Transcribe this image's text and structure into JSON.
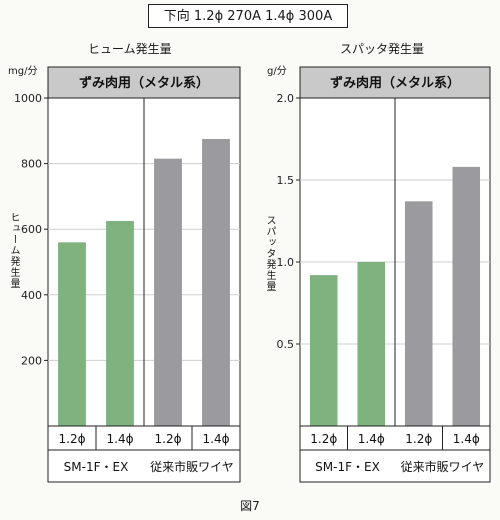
{
  "condition": "下向 1.2ϕ 270A   1.4ϕ 300A",
  "figure_caption": "図7",
  "colors": {
    "green": "#7fb27f",
    "gray": "#9b9b9f",
    "header_bg": "#c9c9c9"
  },
  "chart_data": [
    {
      "type": "bar",
      "title": "ヒューム発生量",
      "unit": "mg/分",
      "ylabel": "ヒューム発生量",
      "header": "ずみ肉用（メタル系）",
      "ylim": [
        0,
        1000
      ],
      "yticks": [
        "200",
        "400",
        "600",
        "800",
        "1000"
      ],
      "categories": [
        "1.2ϕ",
        "1.4ϕ",
        "1.2ϕ",
        "1.4ϕ"
      ],
      "groups": [
        "SM-1F・EX",
        "従来市販ワイヤ"
      ],
      "values": [
        560,
        625,
        815,
        875
      ]
    },
    {
      "type": "bar",
      "title": "スパッタ発生量",
      "unit": "g/分",
      "ylabel": "スパッタ発生量",
      "header": "ずみ肉用（メタル系）",
      "ylim": [
        0,
        2.0
      ],
      "yticks": [
        "0.5",
        "1.0",
        "1.5",
        "2.0"
      ],
      "categories": [
        "1.2ϕ",
        "1.4ϕ",
        "1.2ϕ",
        "1.4ϕ"
      ],
      "groups": [
        "SM-1F・EX",
        "従来市販ワイヤ"
      ],
      "values": [
        0.92,
        1.0,
        1.37,
        1.58
      ]
    }
  ]
}
